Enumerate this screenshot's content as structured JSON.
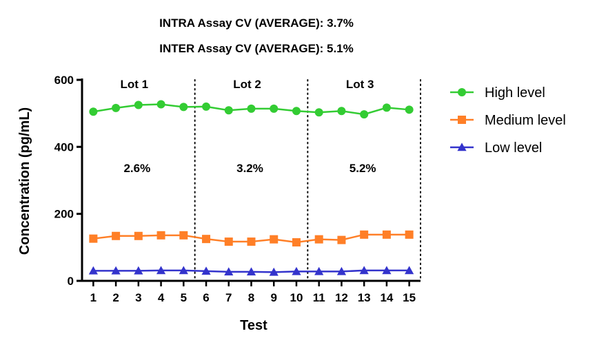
{
  "header": {
    "intra": "INTRA Assay CV (AVERAGE): 3.7%",
    "inter": "INTER Assay CV (AVERAGE): 5.1%"
  },
  "chart_data": {
    "type": "line",
    "xlabel": "Test",
    "ylabel": "Concentration (pg/mL)",
    "x": [
      1,
      2,
      3,
      4,
      5,
      6,
      7,
      8,
      9,
      10,
      11,
      12,
      13,
      14,
      15
    ],
    "ylim": [
      0,
      600
    ],
    "yticks": [
      0,
      200,
      400,
      600
    ],
    "xlim": [
      0.5,
      15.5
    ],
    "grid": false,
    "legend_position": "right",
    "series": [
      {
        "name": "High level",
        "color": "#33cc33",
        "marker": "circle",
        "values": [
          505,
          516,
          525,
          527,
          519,
          520,
          509,
          514,
          514,
          507,
          503,
          507,
          497,
          517,
          511
        ]
      },
      {
        "name": "Medium level",
        "color": "#ff7f27",
        "marker": "square",
        "values": [
          126,
          134,
          134,
          136,
          136,
          125,
          117,
          117,
          124,
          115,
          124,
          122,
          138,
          138,
          138
        ]
      },
      {
        "name": "Low level",
        "color": "#3333cc",
        "marker": "triangle",
        "values": [
          30,
          30,
          30,
          31,
          31,
          29,
          27,
          27,
          26,
          28,
          28,
          28,
          31,
          31,
          31
        ]
      }
    ],
    "lot_dividers_x": [
      5.5,
      10.5,
      15.5
    ],
    "lots": [
      {
        "label": "Lot 1",
        "cv": "2.6%",
        "x_center": 3
      },
      {
        "label": "Lot 2",
        "cv": "3.2%",
        "x_center": 8
      },
      {
        "label": "Lot 3",
        "cv": "5.2%",
        "x_center": 13
      }
    ]
  }
}
